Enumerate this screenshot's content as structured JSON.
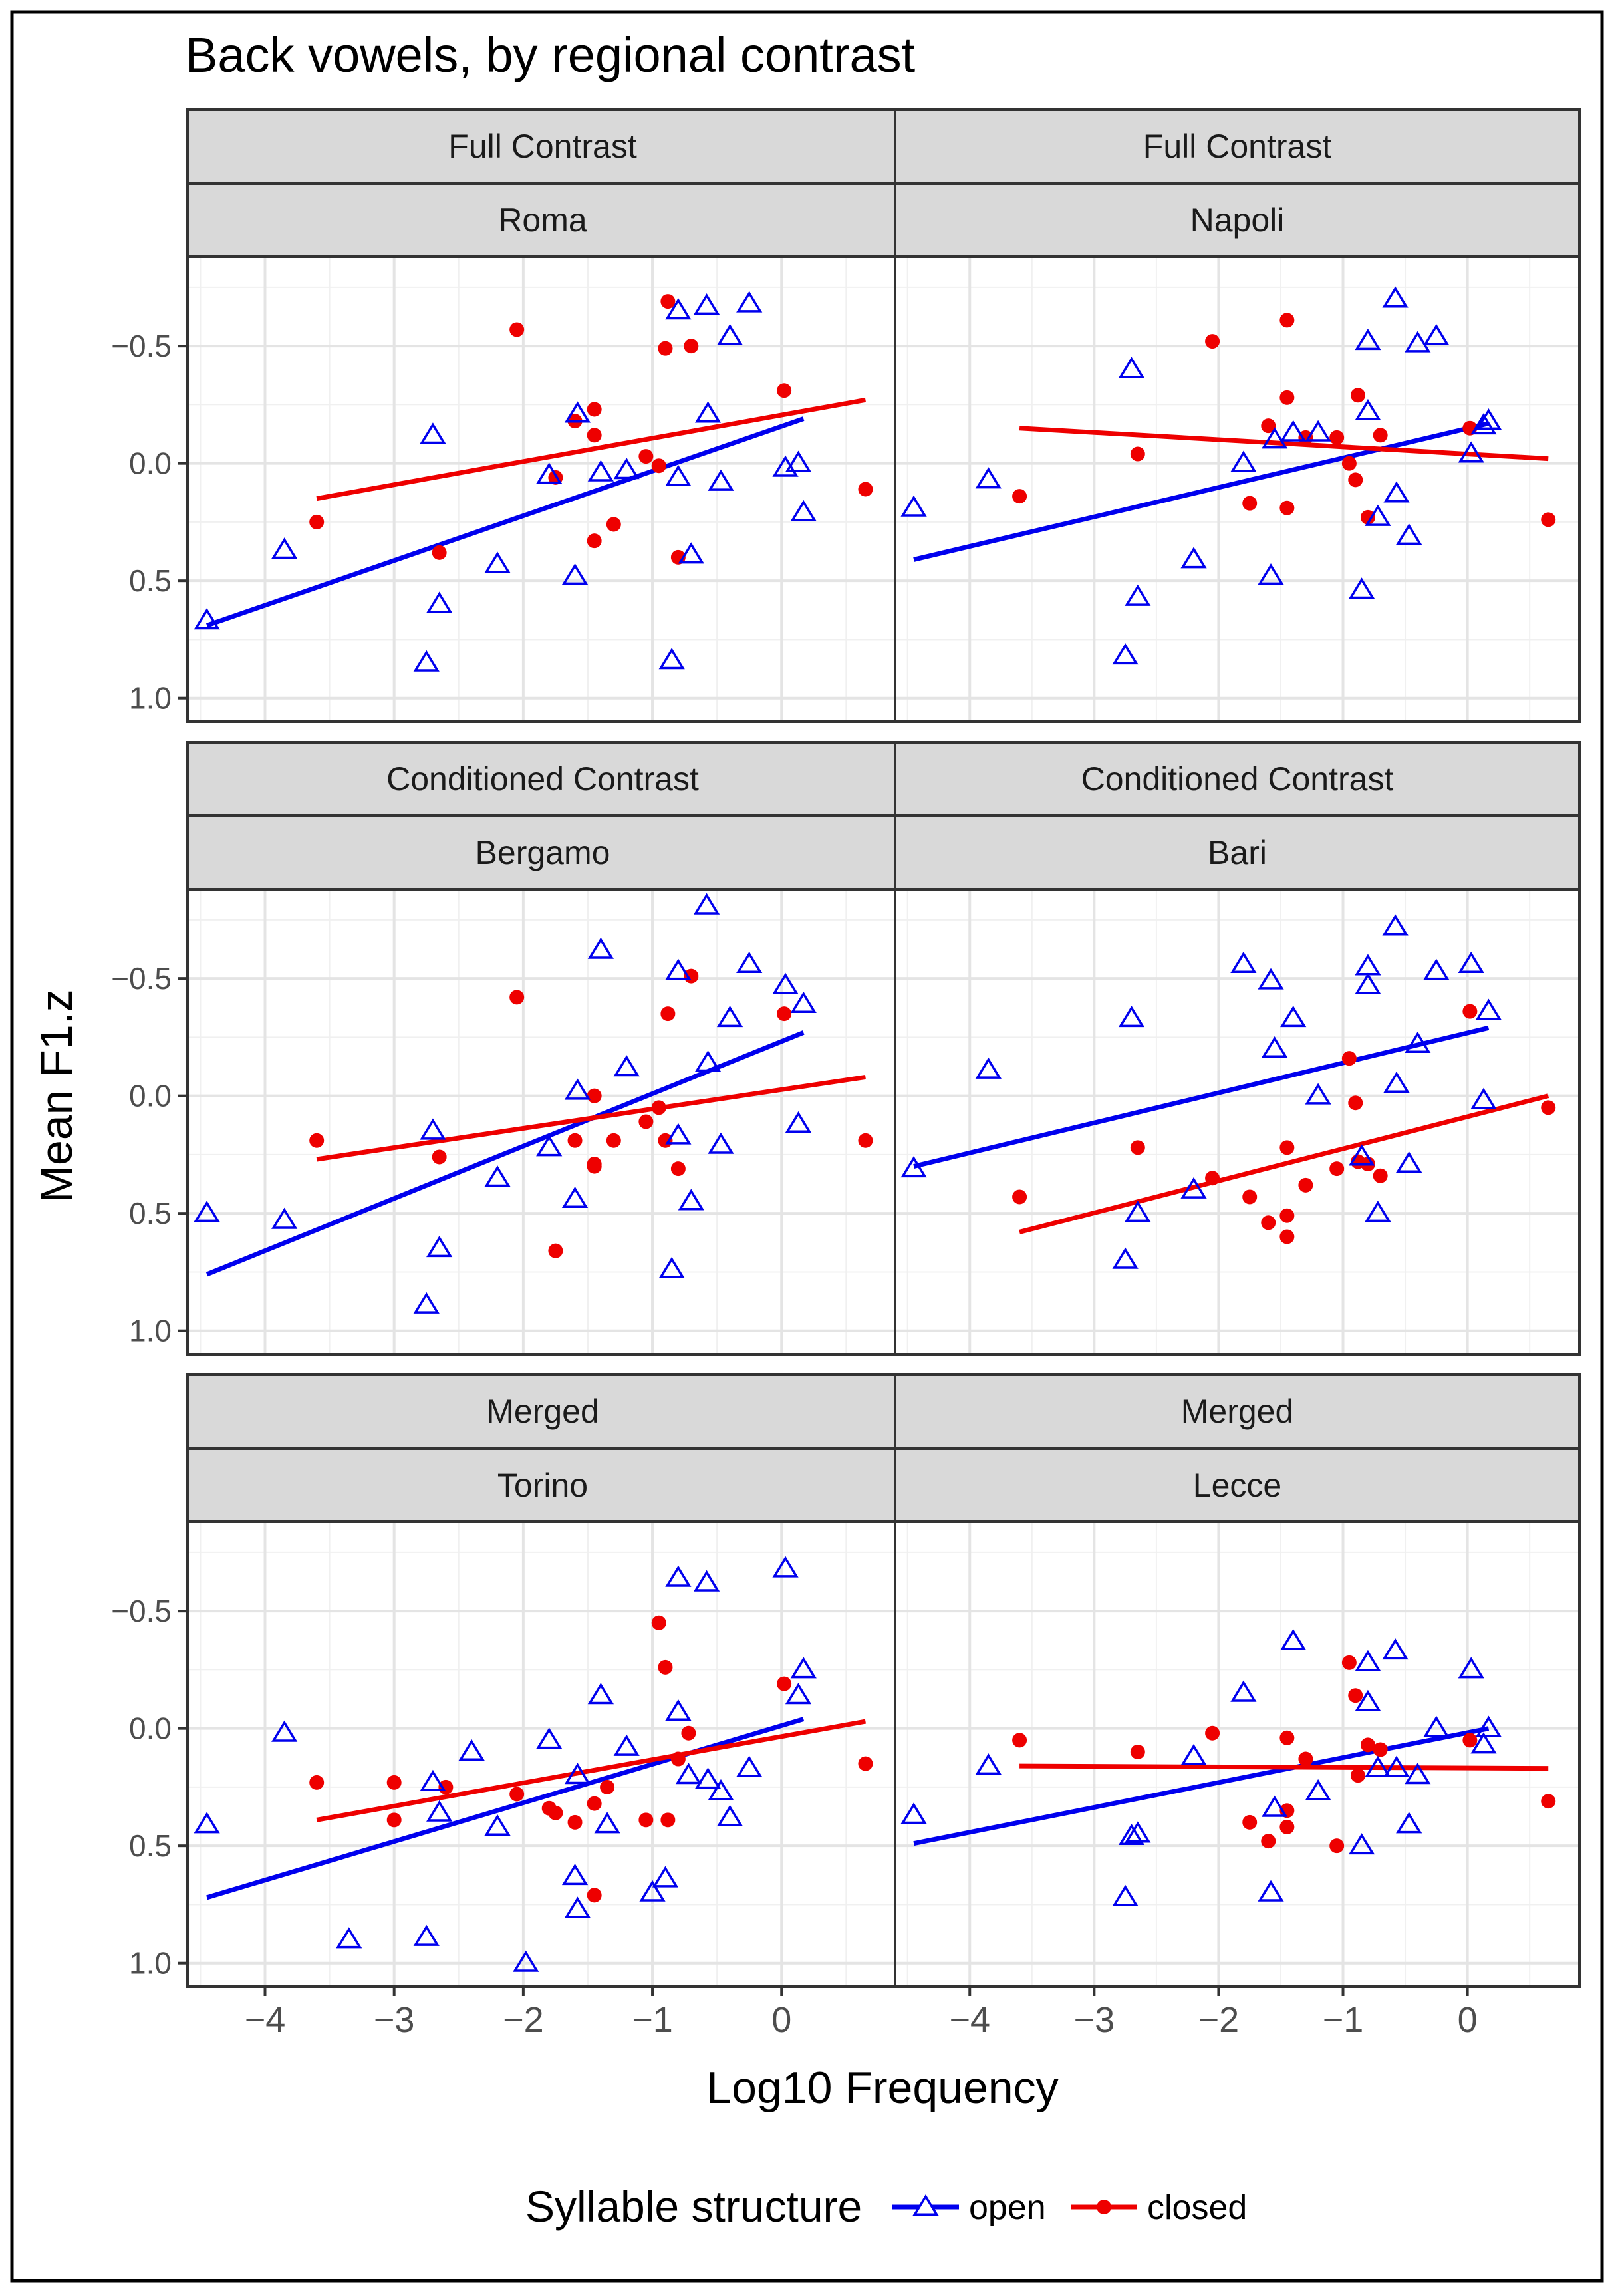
{
  "title": "Back vowels, by regional contrast",
  "xlabel": "Log10 Frequency",
  "ylabel": "Mean F1.z",
  "legend": {
    "title": "Syllable structure",
    "placement": "bottom",
    "entries": [
      {
        "key": "open",
        "label": "open",
        "color": "#0000ee",
        "marker": "triangle-open"
      },
      {
        "key": "closed",
        "label": "closed",
        "color": "#ee0000",
        "marker": "circle-filled"
      }
    ]
  },
  "chart_data": {
    "type": "scatter",
    "facet_layout": {
      "rows": 3,
      "cols": 2
    },
    "x_axis": {
      "range": [
        -4.6,
        0.9
      ],
      "ticks": [
        -4,
        -3,
        -2,
        -1,
        0
      ],
      "tick_labels": [
        "−4",
        "−3",
        "−2",
        "−1",
        "0"
      ]
    },
    "y_axis": {
      "range": [
        1.1,
        -0.88
      ],
      "reversed": true,
      "ticks": [
        -0.5,
        0.0,
        0.5,
        1.0
      ],
      "tick_labels": [
        "−0.5",
        "0.0",
        "0.5",
        "1.0"
      ]
    },
    "grid": true,
    "panels": [
      {
        "contrast": "Full Contrast",
        "city": "Roma",
        "open": [
          [
            -4.45,
            0.67
          ],
          [
            -3.85,
            0.37
          ],
          [
            -2.75,
            0.85
          ],
          [
            -2.7,
            -0.12
          ],
          [
            -2.65,
            0.6
          ],
          [
            -2.2,
            0.43
          ],
          [
            -1.8,
            0.05
          ],
          [
            -1.6,
            0.48
          ],
          [
            -1.58,
            -0.21
          ],
          [
            -1.4,
            0.04
          ],
          [
            -1.2,
            0.03
          ],
          [
            -0.85,
            0.84
          ],
          [
            -0.8,
            -0.65
          ],
          [
            -0.8,
            0.06
          ],
          [
            -0.7,
            0.39
          ],
          [
            -0.58,
            -0.67
          ],
          [
            -0.57,
            -0.21
          ],
          [
            -0.47,
            0.08
          ],
          [
            -0.4,
            -0.54
          ],
          [
            -0.25,
            -0.68
          ],
          [
            0.03,
            0.02
          ],
          [
            0.13,
            0.0
          ],
          [
            0.17,
            0.21
          ]
        ],
        "closed": [
          [
            -3.6,
            0.25
          ],
          [
            -2.65,
            0.38
          ],
          [
            -2.05,
            -0.57
          ],
          [
            -1.75,
            0.06
          ],
          [
            -1.6,
            -0.18
          ],
          [
            -1.45,
            -0.23
          ],
          [
            -1.45,
            -0.12
          ],
          [
            -1.45,
            0.33
          ],
          [
            -1.3,
            0.26
          ],
          [
            -1.05,
            -0.03
          ],
          [
            -0.95,
            0.01
          ],
          [
            -0.9,
            -0.49
          ],
          [
            -0.88,
            -0.69
          ],
          [
            -0.8,
            0.4
          ],
          [
            -0.7,
            -0.5
          ],
          [
            0.02,
            -0.31
          ],
          [
            0.65,
            0.11
          ]
        ],
        "fit_open": {
          "x": [
            -4.45,
            0.17
          ],
          "y": [
            0.69,
            -0.19
          ]
        },
        "fit_closed": {
          "x": [
            -3.6,
            0.65
          ],
          "y": [
            0.15,
            -0.27
          ]
        }
      },
      {
        "contrast": "Full Contrast",
        "city": "Napoli",
        "open": [
          [
            -4.45,
            0.19
          ],
          [
            -3.85,
            0.07
          ],
          [
            -2.75,
            0.82
          ],
          [
            -2.7,
            -0.4
          ],
          [
            -2.65,
            0.57
          ],
          [
            -2.2,
            0.41
          ],
          [
            -1.8,
            0.0
          ],
          [
            -1.58,
            0.48
          ],
          [
            -1.55,
            -0.1
          ],
          [
            -1.4,
            -0.13
          ],
          [
            -1.2,
            -0.13
          ],
          [
            -0.85,
            0.54
          ],
          [
            -0.8,
            -0.22
          ],
          [
            -0.8,
            -0.52
          ],
          [
            -0.72,
            0.23
          ],
          [
            -0.58,
            -0.7
          ],
          [
            -0.57,
            0.13
          ],
          [
            -0.47,
            0.31
          ],
          [
            -0.4,
            -0.51
          ],
          [
            -0.25,
            -0.54
          ],
          [
            0.03,
            -0.04
          ],
          [
            0.13,
            -0.16
          ],
          [
            0.17,
            -0.18
          ]
        ],
        "closed": [
          [
            -3.6,
            0.14
          ],
          [
            -2.65,
            -0.04
          ],
          [
            -2.05,
            -0.52
          ],
          [
            -1.75,
            0.17
          ],
          [
            -1.6,
            -0.16
          ],
          [
            -1.45,
            0.19
          ],
          [
            -1.45,
            -0.61
          ],
          [
            -1.45,
            -0.28
          ],
          [
            -1.3,
            -0.11
          ],
          [
            -1.05,
            -0.11
          ],
          [
            -0.95,
            0.0
          ],
          [
            -0.9,
            0.07
          ],
          [
            -0.88,
            -0.29
          ],
          [
            -0.8,
            0.23
          ],
          [
            -0.7,
            -0.12
          ],
          [
            0.02,
            -0.15
          ],
          [
            0.65,
            0.24
          ]
        ],
        "fit_open": {
          "x": [
            -4.45,
            0.17
          ],
          "y": [
            0.41,
            -0.17
          ]
        },
        "fit_closed": {
          "x": [
            -3.6,
            0.65
          ],
          "y": [
            -0.15,
            -0.02
          ]
        }
      },
      {
        "contrast": "Conditioned Contrast",
        "city": "Bergamo",
        "open": [
          [
            -4.45,
            0.5
          ],
          [
            -3.85,
            0.53
          ],
          [
            -2.75,
            0.89
          ],
          [
            -2.7,
            0.15
          ],
          [
            -2.65,
            0.65
          ],
          [
            -2.2,
            0.35
          ],
          [
            -1.8,
            0.22
          ],
          [
            -1.6,
            0.44
          ],
          [
            -1.58,
            -0.02
          ],
          [
            -1.4,
            -0.62
          ],
          [
            -1.2,
            -0.12
          ],
          [
            -0.85,
            0.74
          ],
          [
            -0.8,
            -0.53
          ],
          [
            -0.8,
            0.17
          ],
          [
            -0.7,
            0.45
          ],
          [
            -0.58,
            -0.81
          ],
          [
            -0.57,
            -0.14
          ],
          [
            -0.47,
            0.21
          ],
          [
            -0.4,
            -0.33
          ],
          [
            -0.25,
            -0.56
          ],
          [
            0.03,
            -0.47
          ],
          [
            0.13,
            0.12
          ],
          [
            0.17,
            -0.39
          ]
        ],
        "closed": [
          [
            -3.6,
            0.19
          ],
          [
            -2.65,
            0.26
          ],
          [
            -2.05,
            -0.42
          ],
          [
            -1.75,
            0.66
          ],
          [
            -1.6,
            0.19
          ],
          [
            -1.45,
            0.0
          ],
          [
            -1.45,
            0.29
          ],
          [
            -1.45,
            0.3
          ],
          [
            -1.3,
            0.19
          ],
          [
            -1.05,
            0.11
          ],
          [
            -0.95,
            0.05
          ],
          [
            -0.9,
            0.19
          ],
          [
            -0.88,
            -0.35
          ],
          [
            -0.8,
            0.31
          ],
          [
            -0.7,
            -0.51
          ],
          [
            0.02,
            -0.35
          ],
          [
            0.65,
            0.19
          ]
        ],
        "fit_open": {
          "x": [
            -4.45,
            0.17
          ],
          "y": [
            0.76,
            -0.27
          ]
        },
        "fit_closed": {
          "x": [
            -3.6,
            0.65
          ],
          "y": [
            0.27,
            -0.08
          ]
        }
      },
      {
        "contrast": "Conditioned Contrast",
        "city": "Bari",
        "open": [
          [
            -4.45,
            0.31
          ],
          [
            -3.85,
            -0.11
          ],
          [
            -2.75,
            0.7
          ],
          [
            -2.7,
            -0.33
          ],
          [
            -2.65,
            0.5
          ],
          [
            -2.2,
            0.4
          ],
          [
            -1.8,
            -0.56
          ],
          [
            -1.58,
            -0.49
          ],
          [
            -1.55,
            -0.2
          ],
          [
            -1.4,
            -0.33
          ],
          [
            -1.2,
            0.0
          ],
          [
            -0.85,
            0.26
          ],
          [
            -0.8,
            -0.55
          ],
          [
            -0.8,
            -0.47
          ],
          [
            -0.72,
            0.5
          ],
          [
            -0.58,
            -0.72
          ],
          [
            -0.57,
            -0.05
          ],
          [
            -0.47,
            0.29
          ],
          [
            -0.4,
            -0.22
          ],
          [
            -0.25,
            -0.53
          ],
          [
            0.03,
            -0.56
          ],
          [
            0.13,
            0.02
          ],
          [
            0.17,
            -0.36
          ]
        ],
        "closed": [
          [
            -3.6,
            0.43
          ],
          [
            -2.65,
            0.22
          ],
          [
            -2.05,
            0.35
          ],
          [
            -1.75,
            0.43
          ],
          [
            -1.6,
            0.54
          ],
          [
            -1.45,
            0.22
          ],
          [
            -1.45,
            0.51
          ],
          [
            -1.45,
            0.6
          ],
          [
            -1.3,
            0.38
          ],
          [
            -1.05,
            0.31
          ],
          [
            -0.95,
            -0.16
          ],
          [
            -0.9,
            0.03
          ],
          [
            -0.88,
            0.28
          ],
          [
            -0.8,
            0.29
          ],
          [
            -0.7,
            0.34
          ],
          [
            0.02,
            -0.36
          ],
          [
            0.65,
            0.05
          ]
        ],
        "fit_open": {
          "x": [
            -4.45,
            0.17
          ],
          "y": [
            0.3,
            -0.29
          ]
        },
        "fit_closed": {
          "x": [
            -3.6,
            0.65
          ],
          "y": [
            0.58,
            0.0
          ]
        }
      },
      {
        "contrast": "Merged",
        "city": "Torino",
        "open": [
          [
            -4.45,
            0.41
          ],
          [
            -3.85,
            0.02
          ],
          [
            -3.35,
            0.9
          ],
          [
            -2.75,
            0.89
          ],
          [
            -2.7,
            0.23
          ],
          [
            -2.65,
            0.36
          ],
          [
            -2.4,
            0.1
          ],
          [
            -2.2,
            0.42
          ],
          [
            -1.98,
            1.0
          ],
          [
            -1.8,
            0.05
          ],
          [
            -1.6,
            0.63
          ],
          [
            -1.58,
            0.77
          ],
          [
            -1.58,
            0.2
          ],
          [
            -1.4,
            -0.14
          ],
          [
            -1.35,
            0.41
          ],
          [
            -1.2,
            0.08
          ],
          [
            -1.0,
            0.7
          ],
          [
            -0.9,
            0.64
          ],
          [
            -0.8,
            -0.64
          ],
          [
            -0.8,
            -0.07
          ],
          [
            -0.72,
            0.2
          ],
          [
            -0.58,
            -0.62
          ],
          [
            -0.57,
            0.22
          ],
          [
            -0.47,
            0.27
          ],
          [
            -0.4,
            0.38
          ],
          [
            -0.25,
            0.17
          ],
          [
            0.03,
            -0.68
          ],
          [
            0.13,
            -0.14
          ],
          [
            0.17,
            -0.25
          ]
        ],
        "closed": [
          [
            -3.6,
            0.23
          ],
          [
            -3.0,
            0.23
          ],
          [
            -3.0,
            0.39
          ],
          [
            -2.6,
            0.25
          ],
          [
            -2.05,
            0.28
          ],
          [
            -1.8,
            0.34
          ],
          [
            -1.75,
            0.36
          ],
          [
            -1.6,
            0.4
          ],
          [
            -1.45,
            0.32
          ],
          [
            -1.45,
            0.71
          ],
          [
            -1.35,
            0.25
          ],
          [
            -1.05,
            0.39
          ],
          [
            -0.95,
            -0.45
          ],
          [
            -0.9,
            -0.26
          ],
          [
            -0.88,
            0.39
          ],
          [
            -0.8,
            0.13
          ],
          [
            -0.72,
            0.02
          ],
          [
            0.02,
            -0.19
          ],
          [
            0.65,
            0.15
          ]
        ],
        "fit_open": {
          "x": [
            -4.45,
            0.17
          ],
          "y": [
            0.72,
            -0.04
          ]
        },
        "fit_closed": {
          "x": [
            -3.6,
            0.65
          ],
          "y": [
            0.39,
            -0.03
          ]
        }
      },
      {
        "contrast": "Merged",
        "city": "Lecce",
        "open": [
          [
            -4.45,
            0.37
          ],
          [
            -3.85,
            0.16
          ],
          [
            -2.75,
            0.72
          ],
          [
            -2.7,
            0.46
          ],
          [
            -2.65,
            0.45
          ],
          [
            -2.2,
            0.12
          ],
          [
            -1.8,
            -0.15
          ],
          [
            -1.58,
            0.7
          ],
          [
            -1.55,
            0.34
          ],
          [
            -1.4,
            -0.37
          ],
          [
            -1.2,
            0.27
          ],
          [
            -0.85,
            0.5
          ],
          [
            -0.8,
            -0.28
          ],
          [
            -0.8,
            -0.11
          ],
          [
            -0.72,
            0.17
          ],
          [
            -0.58,
            -0.33
          ],
          [
            -0.57,
            0.17
          ],
          [
            -0.47,
            0.41
          ],
          [
            -0.4,
            0.2
          ],
          [
            -0.25,
            0.0
          ],
          [
            0.03,
            -0.25
          ],
          [
            0.13,
            0.07
          ],
          [
            0.17,
            0.0
          ]
        ],
        "closed": [
          [
            -3.6,
            0.05
          ],
          [
            -2.65,
            0.1
          ],
          [
            -2.05,
            0.02
          ],
          [
            -1.75,
            0.4
          ],
          [
            -1.6,
            0.48
          ],
          [
            -1.45,
            0.04
          ],
          [
            -1.45,
            0.35
          ],
          [
            -1.45,
            0.42
          ],
          [
            -1.3,
            0.13
          ],
          [
            -1.05,
            0.5
          ],
          [
            -0.95,
            -0.28
          ],
          [
            -0.9,
            -0.14
          ],
          [
            -0.88,
            0.2
          ],
          [
            -0.8,
            0.07
          ],
          [
            -0.7,
            0.09
          ],
          [
            0.02,
            0.05
          ],
          [
            0.65,
            0.31
          ]
        ],
        "fit_open": {
          "x": [
            -4.45,
            0.17
          ],
          "y": [
            0.49,
            0.0
          ]
        },
        "fit_closed": {
          "x": [
            -3.6,
            0.65
          ],
          "y": [
            0.16,
            0.17
          ]
        }
      }
    ]
  }
}
